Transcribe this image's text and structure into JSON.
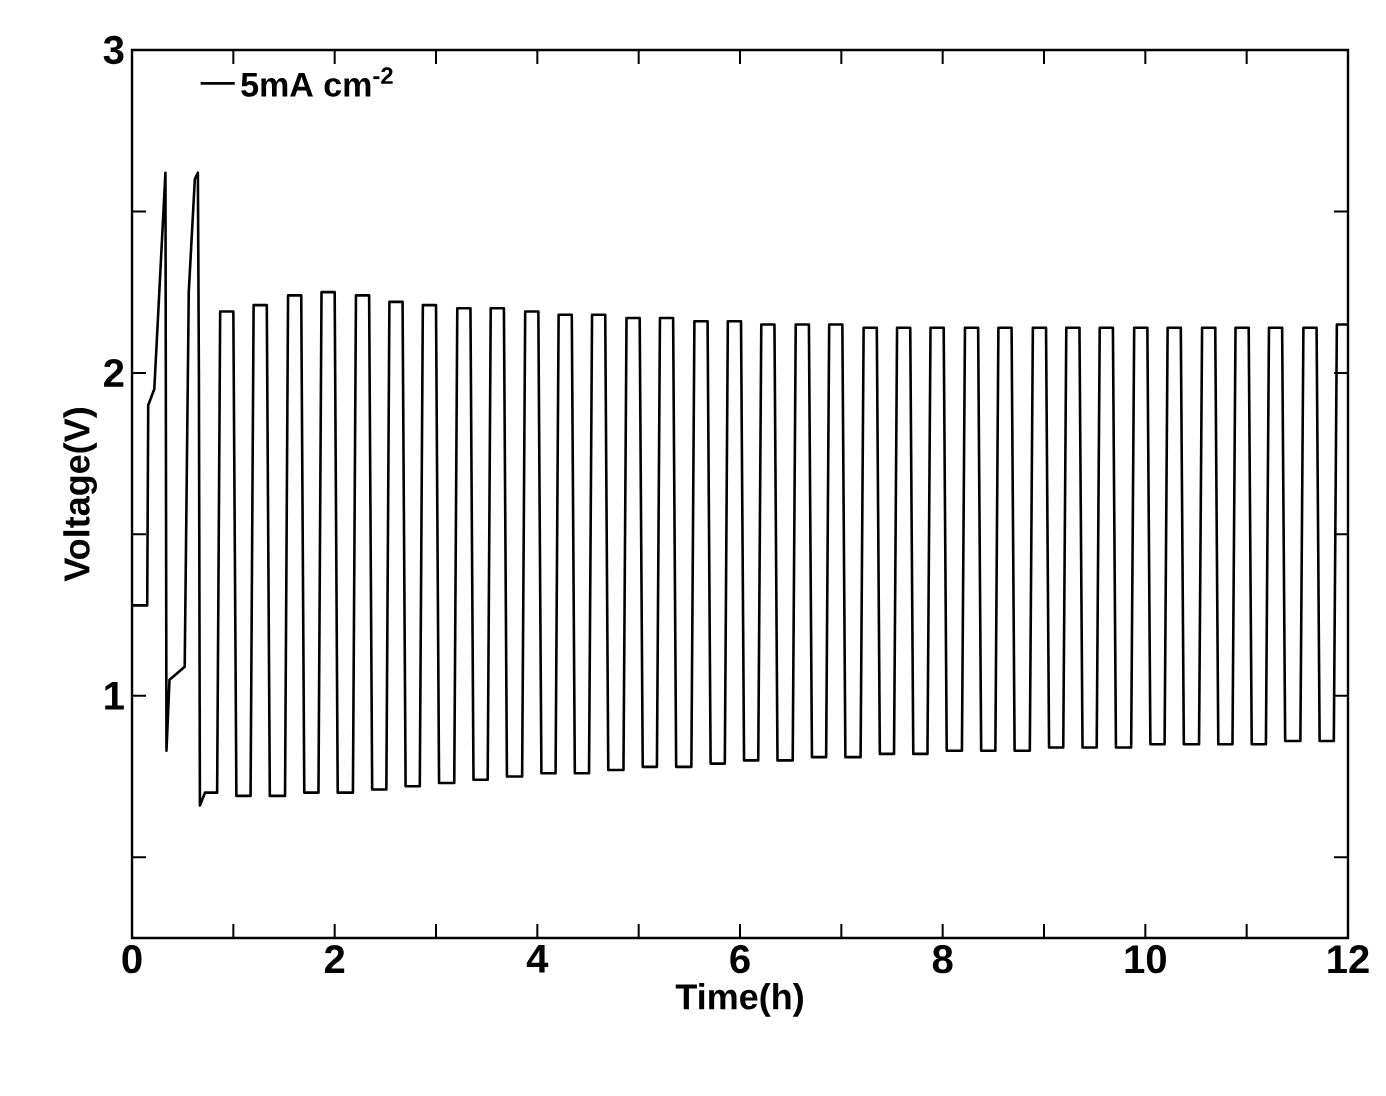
{
  "chart_data": {
    "type": "line",
    "xlabel": "Time(h)",
    "ylabel": "Voltage(V)",
    "xlim": [
      0,
      12
    ],
    "ylim": [
      0.25,
      3
    ],
    "xticks": [
      0,
      {
        "value": 1,
        "label": null
      },
      2,
      {
        "value": 3,
        "label": null
      },
      4,
      {
        "value": 5,
        "label": null
      },
      6,
      {
        "value": 7,
        "label": null
      },
      8,
      {
        "value": 9,
        "label": null
      },
      10,
      {
        "value": 11,
        "label": null
      },
      12
    ],
    "yticks": [
      {
        "value": 0.5,
        "label": null
      },
      1,
      {
        "value": 1.5,
        "label": null
      },
      2,
      {
        "value": 2.5,
        "label": null
      },
      3
    ],
    "legend": "top left",
    "grid": false,
    "marker": "none",
    "line_style": "solid",
    "series": [
      {
        "name": "5mA cm$^{-2}$",
        "color": "#000000",
        "x": [
          0,
          0.15,
          0.16,
          0.22,
          0.33,
          0.34,
          0.37,
          0.52,
          0.56,
          0.62,
          0.65,
          0.66,
          0.67,
          0.72,
          0.84,
          0.87,
          1.0,
          1.03,
          1.17,
          1.2,
          1.33,
          1.36,
          1.51,
          1.54,
          1.67,
          1.7,
          1.84,
          1.87,
          2.0,
          2.03,
          2.18,
          2.21,
          2.34,
          2.37,
          2.51,
          2.54,
          2.67,
          2.7,
          2.84,
          2.87,
          3.0,
          3.03,
          3.18,
          3.21,
          3.34,
          3.37,
          3.51,
          3.54,
          3.67,
          3.7,
          3.85,
          3.88,
          4.01,
          4.04,
          4.18,
          4.21,
          4.34,
          4.37,
          4.51,
          4.54,
          4.67,
          4.7,
          4.85,
          4.88,
          5.01,
          5.04,
          5.18,
          5.21,
          5.34,
          5.37,
          5.52,
          5.55,
          5.68,
          5.71,
          5.85,
          5.88,
          6.01,
          6.04,
          6.18,
          6.21,
          6.34,
          6.37,
          6.52,
          6.55,
          6.68,
          6.71,
          6.85,
          6.88,
          7.01,
          7.04,
          7.19,
          7.22,
          7.35,
          7.38,
          7.52,
          7.55,
          7.68,
          7.71,
          7.85,
          7.88,
          8.01,
          8.04,
          8.19,
          8.22,
          8.35,
          8.38,
          8.52,
          8.55,
          8.68,
          8.71,
          8.86,
          8.89,
          9.02,
          9.05,
          9.19,
          9.22,
          9.35,
          9.38,
          9.52,
          9.55,
          9.68,
          9.71,
          9.86,
          9.89,
          10.02,
          10.05,
          10.19,
          10.22,
          10.35,
          10.38,
          10.53,
          10.56,
          10.69,
          10.72,
          10.86,
          10.89,
          11.02,
          11.05,
          11.19,
          11.22,
          11.35,
          11.38,
          11.53,
          11.56,
          11.69,
          11.72,
          11.86,
          11.89,
          12.0
        ],
        "values": [
          1.28,
          1.28,
          1.9,
          1.95,
          2.62,
          0.83,
          1.05,
          1.09,
          2.25,
          2.6,
          2.62,
          2.0,
          0.66,
          0.7,
          0.7,
          2.19,
          2.19,
          0.69,
          0.69,
          2.21,
          2.21,
          0.69,
          0.69,
          2.24,
          2.24,
          0.7,
          0.7,
          2.25,
          2.25,
          0.7,
          0.7,
          2.24,
          2.24,
          0.71,
          0.71,
          2.22,
          2.22,
          0.72,
          0.72,
          2.21,
          2.21,
          0.73,
          0.73,
          2.2,
          2.2,
          0.74,
          0.74,
          2.2,
          2.2,
          0.75,
          0.75,
          2.19,
          2.19,
          0.76,
          0.76,
          2.18,
          2.18,
          0.76,
          0.76,
          2.18,
          2.18,
          0.77,
          0.77,
          2.17,
          2.17,
          0.78,
          0.78,
          2.17,
          2.17,
          0.78,
          0.78,
          2.16,
          2.16,
          0.79,
          0.79,
          2.16,
          2.16,
          0.8,
          0.8,
          2.15,
          2.15,
          0.8,
          0.8,
          2.15,
          2.15,
          0.81,
          0.81,
          2.15,
          2.15,
          0.81,
          0.81,
          2.14,
          2.14,
          0.82,
          0.82,
          2.14,
          2.14,
          0.82,
          0.82,
          2.14,
          2.14,
          0.83,
          0.83,
          2.14,
          2.14,
          0.83,
          0.83,
          2.14,
          2.14,
          0.83,
          0.83,
          2.14,
          2.14,
          0.84,
          0.84,
          2.14,
          2.14,
          0.84,
          0.84,
          2.14,
          2.14,
          0.84,
          0.84,
          2.14,
          2.14,
          0.85,
          0.85,
          2.14,
          2.14,
          0.85,
          0.85,
          2.14,
          2.14,
          0.85,
          0.85,
          2.14,
          2.14,
          0.85,
          0.85,
          2.14,
          2.14,
          0.86,
          0.86,
          2.14,
          2.14,
          0.86,
          0.86,
          2.15,
          2.15
        ]
      }
    ]
  }
}
